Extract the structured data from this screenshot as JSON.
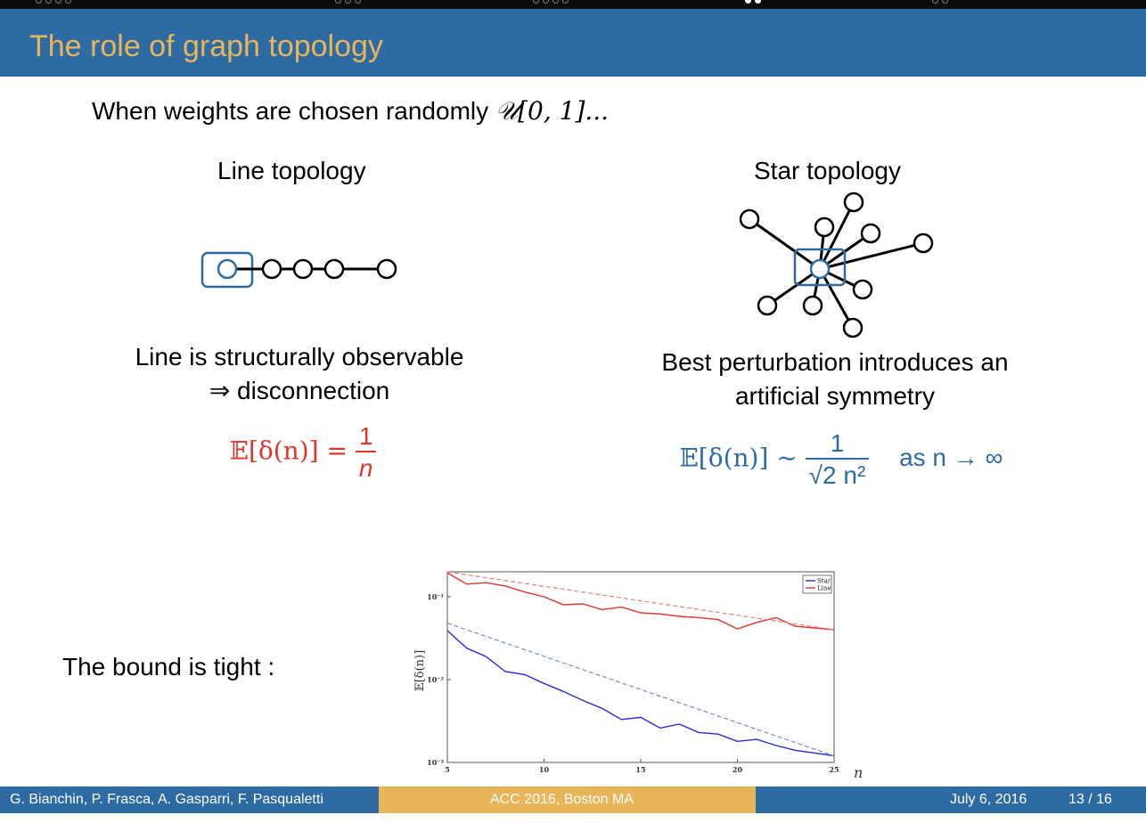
{
  "slide": {
    "title": "The role of graph topology",
    "intro_text": "When weights are chosen randomly ",
    "intro_math": "𝒰[0, 1]...",
    "line": {
      "heading": "Line topology",
      "caption_line1": "Line is structurally observable",
      "caption_line2": "⇒ disconnection",
      "formula_lhs": "𝔼[δ(n)] = ",
      "formula_num": "1",
      "formula_den": "n",
      "color": "#e0352b"
    },
    "star": {
      "heading": "Star topology",
      "caption_line1": "Best perturbation introduces an",
      "caption_line2": "artificial symmetry",
      "formula_lhs": "𝔼[δ(n)] ∼ ",
      "formula_num": "1",
      "formula_den": "√2 n²",
      "formula_rhs": "as n → ∞",
      "color": "#2e6aa3"
    },
    "bound_text": "The bound is tight :"
  },
  "chart_data": {
    "type": "line",
    "y_scale": "log",
    "ylabel": "𝔼[δ(n)]",
    "xlabel": "n",
    "xlim": [
      5,
      25
    ],
    "ylim": [
      0.001,
      0.2
    ],
    "x_ticks": [
      "5",
      "10",
      "15",
      "20",
      "25"
    ],
    "y_ticks": [
      "10⁻¹",
      "10⁻²",
      "10⁻³"
    ],
    "legend_position": "top-right",
    "series": [
      {
        "name": "Star",
        "color": "#2a2ad8",
        "x": [
          5,
          6,
          7,
          8,
          9,
          10,
          11,
          12,
          13,
          14,
          15,
          16,
          17,
          18,
          19,
          20,
          21,
          22,
          23,
          24,
          25
        ],
        "values": [
          0.039,
          0.024,
          0.019,
          0.0125,
          0.0115,
          0.009,
          0.0072,
          0.0056,
          0.0045,
          0.0033,
          0.0035,
          0.0026,
          0.0029,
          0.0023,
          0.0022,
          0.0018,
          0.0019,
          0.0016,
          0.0014,
          0.0013,
          0.0012
        ]
      },
      {
        "name": "Line",
        "color": "#e0352b",
        "x": [
          5,
          6,
          7,
          8,
          9,
          10,
          11,
          12,
          13,
          14,
          15,
          16,
          17,
          18,
          19,
          20,
          21,
          22,
          23,
          24,
          25
        ],
        "values": [
          0.195,
          0.142,
          0.148,
          0.135,
          0.114,
          0.1,
          0.08,
          0.082,
          0.07,
          0.075,
          0.064,
          0.062,
          0.058,
          0.056,
          0.053,
          0.041,
          0.049,
          0.056,
          0.044,
          0.042,
          0.04
        ]
      },
      {
        "name": "",
        "style": "dashed",
        "color": "#7a86e6",
        "x": [
          5,
          25
        ],
        "values": [
          0.048,
          0.0012
        ]
      },
      {
        "name": "",
        "style": "dashed",
        "color": "#e87f7a",
        "x": [
          5,
          25
        ],
        "values": [
          0.2,
          0.04
        ]
      }
    ]
  },
  "footer": {
    "authors": "G. Bianchin, P. Frasca, A. Gasparri, F. Pasqualetti",
    "conference": "ACC 2016, Boston MA",
    "date": "July 6, 2016",
    "page": "13 / 16"
  }
}
